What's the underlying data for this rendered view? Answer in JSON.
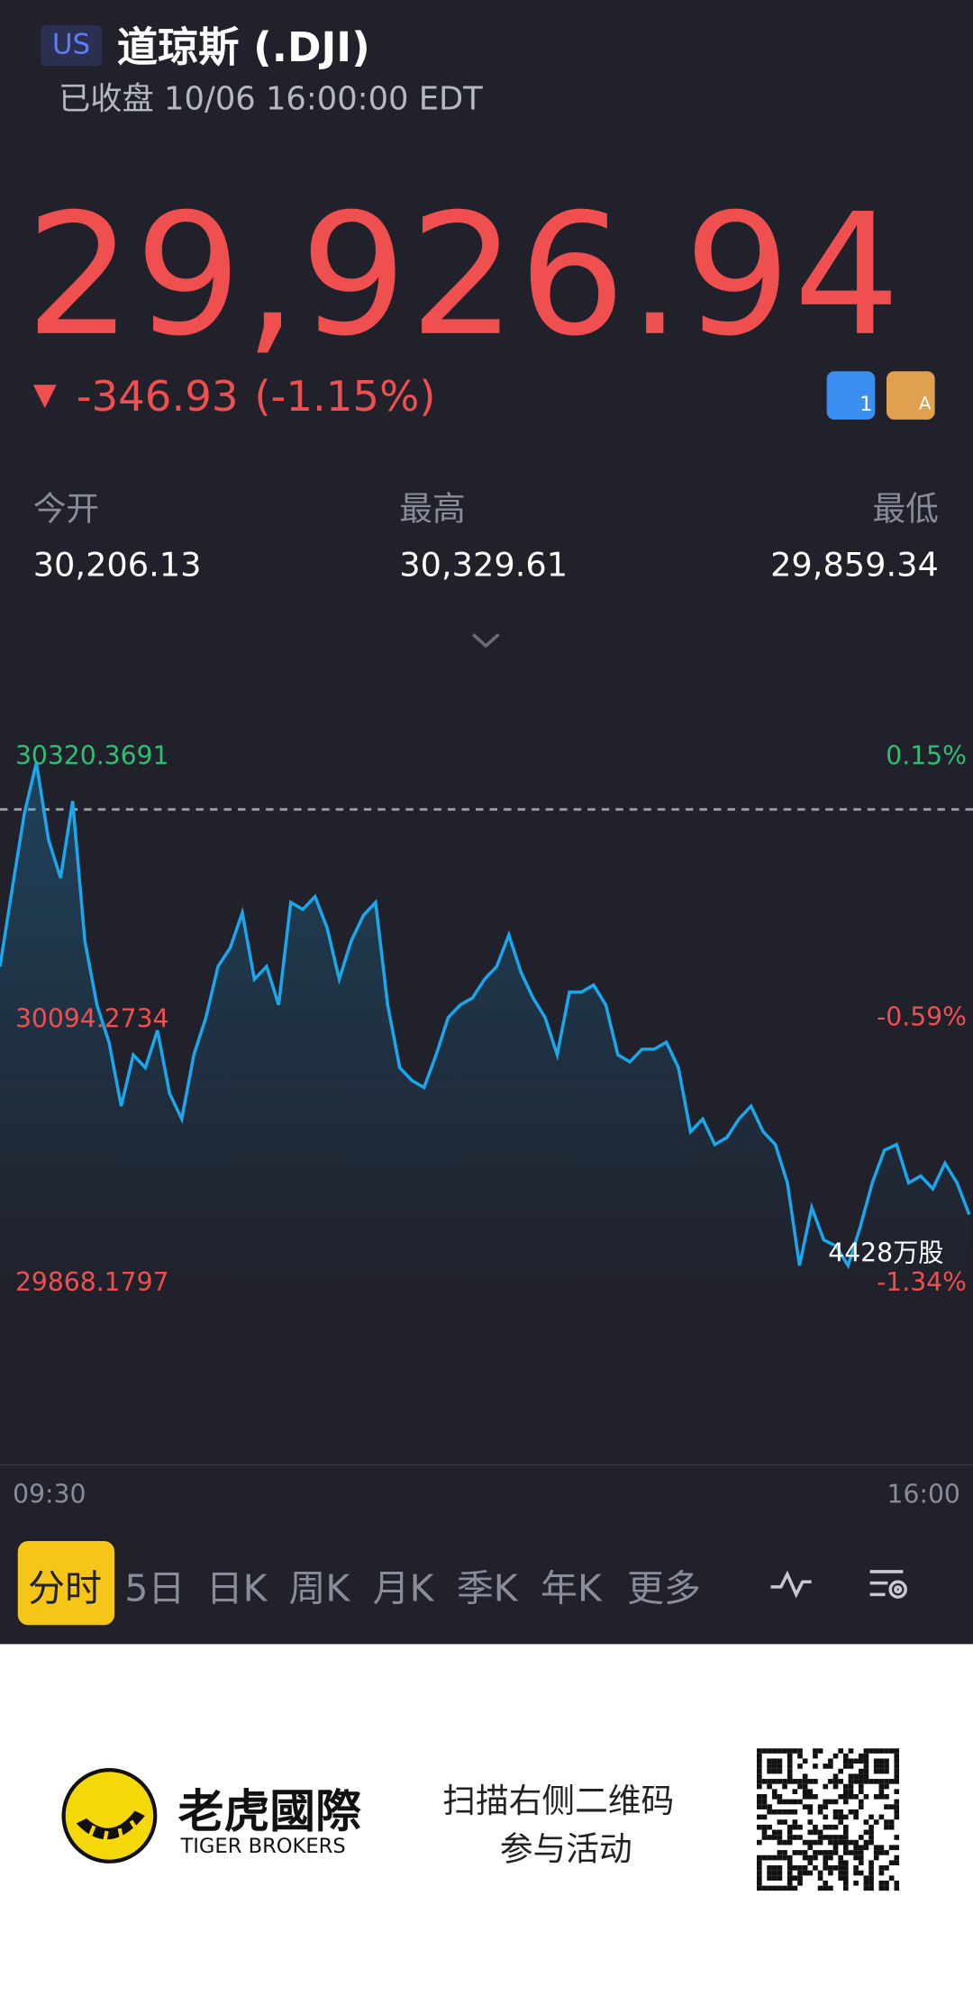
{
  "header": {
    "market": "US",
    "name": "道琼斯 (.DJI)",
    "status": "已收盘 10/06 16:00:00 EDT"
  },
  "quote": {
    "price": "29,926.94",
    "arrow": "▼",
    "change": "-346.93",
    "change_pct": "(-1.15%)",
    "badges": [
      "1",
      "A"
    ]
  },
  "stats": [
    {
      "label": "今开",
      "value": "30,206.13"
    },
    {
      "label": "最高",
      "value": "30,329.61"
    },
    {
      "label": "最低",
      "value": "29,859.34"
    }
  ],
  "chart_data": {
    "type": "line",
    "color": "#1aa7ec",
    "values": [
      30139,
      30205,
      30270,
      30314,
      30248,
      30215,
      30281,
      30161,
      30106,
      30074,
      30019,
      30063,
      30052,
      30084,
      30030,
      30008,
      30063,
      30095,
      30139,
      30155,
      30185,
      30128,
      30139,
      30106,
      30194,
      30188,
      30199,
      30172,
      30128,
      30161,
      30183,
      30194,
      30106,
      30052,
      30041,
      30035,
      30063,
      30095,
      30106,
      30112,
      30128,
      30139,
      30166,
      30134,
      30112,
      30095,
      30063,
      30117,
      30117,
      30123,
      30106,
      30063,
      30057,
      30068,
      30068,
      30074,
      30052,
      29997,
      30008,
      29986,
      29992,
      30008,
      30019,
      29997,
      29986,
      29953,
      29882,
      29932,
      29904,
      29899,
      29882,
      29915,
      29953,
      29981,
      29986,
      29953,
      29959,
      29948,
      29970,
      29953,
      29926
    ],
    "ylim": [
      29868.1797,
      30320.3691
    ],
    "yticks": [
      30320.3691,
      30094.2734,
      29868.1797
    ],
    "y2lim": [
      -1.34,
      0.15
    ],
    "y2ticks": [
      {
        "value": 0.15,
        "label": "0.15%"
      },
      {
        "value": -0.59,
        "label": "-0.59%"
      },
      {
        "value": -1.34,
        "label": "-1.34%"
      }
    ],
    "reference_line": 30273.87,
    "x_labels": [
      "09:30",
      "16:00"
    ],
    "volume_label": "4428万股"
  },
  "tabs": [
    "分时",
    "5日",
    "日K",
    "周K",
    "月K",
    "季K",
    "年K",
    "更多"
  ],
  "footer": {
    "brand_cn": "老虎國際",
    "brand_en": "TIGER BROKERS",
    "promo": [
      "扫描右侧二维码",
      "参与活动"
    ]
  }
}
